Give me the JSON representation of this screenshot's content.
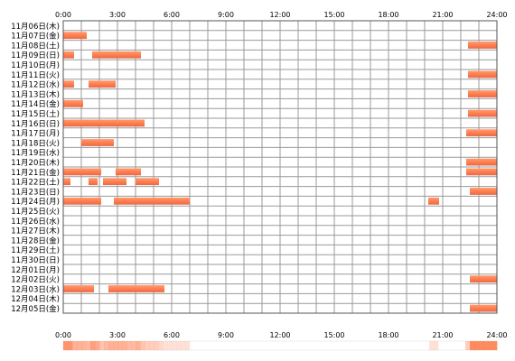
{
  "chart_data": {
    "type": "timeline",
    "x_ticks": [
      "0:00",
      "3:00",
      "6:00",
      "9:00",
      "12:00",
      "15:00",
      "18:00",
      "21:00",
      "24:00"
    ],
    "xlim": [
      0,
      24
    ],
    "grid": true,
    "colors": {
      "bar": "#ff7f50",
      "grid": "#9a9a9a",
      "frame": "#555555",
      "text": "#000000"
    },
    "rows": [
      {
        "label": "11月06日(木)",
        "intervals": []
      },
      {
        "label": "11月07日(金)",
        "intervals": [
          [
            0.0,
            1.3
          ]
        ]
      },
      {
        "label": "11月08日(土)",
        "intervals": [
          [
            22.4,
            24.0
          ]
        ]
      },
      {
        "label": "11月09日(日)",
        "intervals": [
          [
            0.0,
            0.6
          ],
          [
            1.6,
            4.3
          ]
        ]
      },
      {
        "label": "11月10日(月)",
        "intervals": []
      },
      {
        "label": "11月11日(火)",
        "intervals": [
          [
            22.4,
            24.0
          ]
        ]
      },
      {
        "label": "11月12日(水)",
        "intervals": [
          [
            0.0,
            0.6
          ],
          [
            1.4,
            2.9
          ]
        ]
      },
      {
        "label": "11月13日(木)",
        "intervals": [
          [
            22.4,
            24.0
          ]
        ]
      },
      {
        "label": "11月14日(金)",
        "intervals": [
          [
            0.0,
            1.1
          ]
        ]
      },
      {
        "label": "11月15日(土)",
        "intervals": [
          [
            22.4,
            24.0
          ]
        ]
      },
      {
        "label": "11月16日(日)",
        "intervals": [
          [
            0.0,
            4.5
          ]
        ]
      },
      {
        "label": "11月17日(月)",
        "intervals": [
          [
            22.3,
            24.0
          ]
        ]
      },
      {
        "label": "11月18日(火)",
        "intervals": [
          [
            1.0,
            2.8
          ]
        ]
      },
      {
        "label": "11月19日(水)",
        "intervals": []
      },
      {
        "label": "11月20日(木)",
        "intervals": [
          [
            22.3,
            24.0
          ]
        ]
      },
      {
        "label": "11月21日(金)",
        "intervals": [
          [
            0.0,
            2.1
          ],
          [
            2.9,
            4.3
          ],
          [
            22.3,
            24.0
          ]
        ]
      },
      {
        "label": "11月22日(土)",
        "intervals": [
          [
            0.0,
            0.4
          ],
          [
            1.4,
            1.9
          ],
          [
            2.2,
            3.5
          ],
          [
            4.0,
            5.3
          ]
        ]
      },
      {
        "label": "11月23日(日)",
        "intervals": [
          [
            22.5,
            24.0
          ]
        ]
      },
      {
        "label": "11月24日(月)",
        "intervals": [
          [
            0.0,
            2.1
          ],
          [
            2.8,
            7.0
          ],
          [
            20.2,
            20.8
          ]
        ]
      },
      {
        "label": "11月25日(火)",
        "intervals": []
      },
      {
        "label": "11月26日(水)",
        "intervals": []
      },
      {
        "label": "11月27日(木)",
        "intervals": []
      },
      {
        "label": "11月28日(金)",
        "intervals": []
      },
      {
        "label": "11月29日(土)",
        "intervals": []
      },
      {
        "label": "11月30日(日)",
        "intervals": []
      },
      {
        "label": "12月01日(月)",
        "intervals": []
      },
      {
        "label": "12月02日(火)",
        "intervals": [
          [
            22.5,
            24.0
          ]
        ]
      },
      {
        "label": "12月03日(水)",
        "intervals": [
          [
            0.0,
            1.7
          ],
          [
            2.5,
            5.6
          ]
        ]
      },
      {
        "label": "12月04日(木)",
        "intervals": []
      },
      {
        "label": "12月05日(金)",
        "intervals": [
          [
            22.5,
            24.0
          ]
        ]
      }
    ]
  }
}
